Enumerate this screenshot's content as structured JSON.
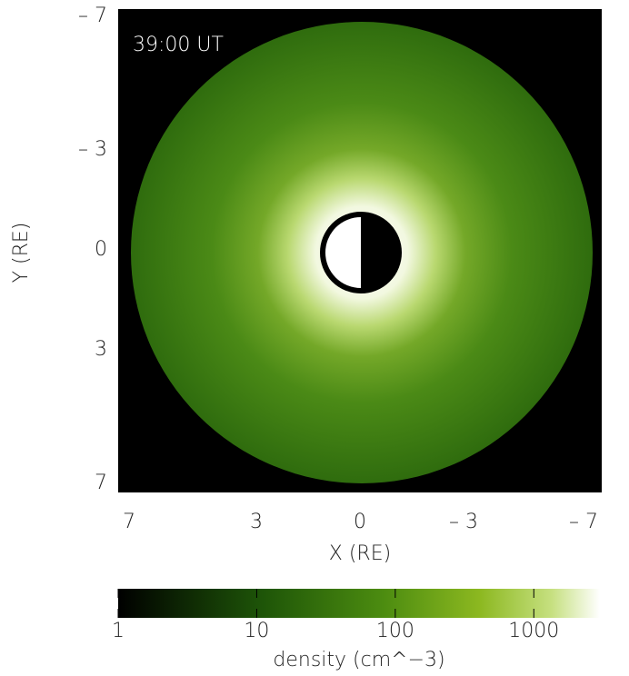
{
  "chart_data": {
    "type": "image",
    "annotation": "39:00 UT",
    "xlabel": "X (RE)",
    "ylabel": "Y (RE)",
    "xlim": [
      7,
      -7
    ],
    "xticks": [
      7,
      3,
      0,
      {
        "value": -3,
        "label": "– 3"
      },
      {
        "value": -7,
        "label": "– 7"
      }
    ],
    "ylim": [
      -7,
      7
    ],
    "yticks": [
      {
        "value": -7,
        "label": "– 7"
      },
      {
        "value": -3,
        "label": "– 3"
      },
      0,
      3,
      7
    ],
    "colorbar": {
      "label": "density (cm^−3)",
      "clim": [
        1,
        3000
      ],
      "log_scale": true,
      "ticks": [
        1,
        10,
        100,
        1000
      ]
    }
  }
}
